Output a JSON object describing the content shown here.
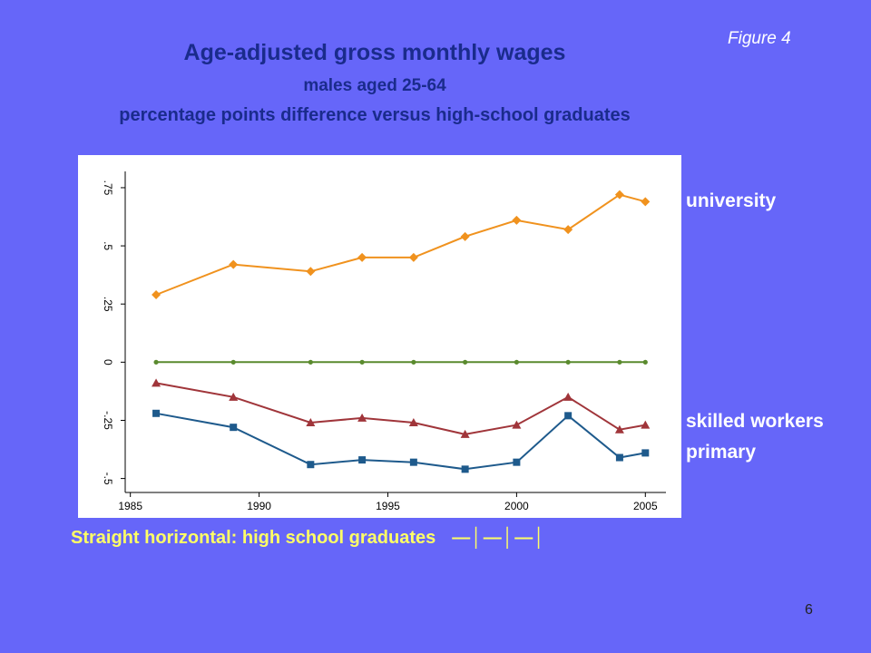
{
  "figure_label": "Figure 4",
  "title": "Age-adjusted gross monthly wages",
  "subtitle": "males aged 25-64",
  "subtitle2": "percentage points difference versus high-school graduates",
  "legend": {
    "university": "university",
    "skilled": "skilled workers",
    "primary": "primary"
  },
  "bottom_note": {
    "text": "Straight horizontal:  high school graduates",
    "marker": "—│—│—│"
  },
  "page_number": "6",
  "colors": {
    "background": "#6666f9",
    "title": "#1a2b8c",
    "legend_text": "#ffffff",
    "note_text": "#ffff66",
    "university": "#f0921e",
    "high_school": "#5a8a2e",
    "skilled": "#a0353a",
    "primary": "#1e5a8c"
  },
  "chart_data": {
    "type": "line",
    "title": "",
    "xlabel": "",
    "ylabel": "",
    "xlim": [
      1984.8,
      2005.8
    ],
    "ylim": [
      -0.56,
      0.82
    ],
    "xticks": [
      1985,
      1990,
      1995,
      2000,
      2005
    ],
    "xtick_labels": [
      "1985",
      "1990",
      "1995",
      "2000",
      "2005"
    ],
    "yticks": [
      -0.5,
      -0.25,
      0,
      0.25,
      0.5,
      0.75
    ],
    "ytick_labels": [
      "-.5",
      "-.25",
      "0",
      ".25",
      ".5",
      ".75"
    ],
    "grid": false,
    "series": [
      {
        "key": "university",
        "marker": "diamond",
        "x": [
          1986,
          1989,
          1992,
          1994,
          1996,
          1998,
          2000,
          2002,
          2004,
          2005
        ],
        "y": [
          0.29,
          0.42,
          0.39,
          0.45,
          0.45,
          0.54,
          0.61,
          0.57,
          0.72,
          0.69
        ]
      },
      {
        "key": "high_school",
        "marker": "plus",
        "x": [
          1986,
          1989,
          1992,
          1994,
          1996,
          1998,
          2000,
          2002,
          2004,
          2005
        ],
        "y": [
          0,
          0,
          0,
          0,
          0,
          0,
          0,
          0,
          0,
          0
        ]
      },
      {
        "key": "skilled",
        "marker": "triangle",
        "x": [
          1986,
          1989,
          1992,
          1994,
          1996,
          1998,
          2000,
          2002,
          2004,
          2005
        ],
        "y": [
          -0.09,
          -0.15,
          -0.26,
          -0.24,
          -0.26,
          -0.31,
          -0.27,
          -0.15,
          -0.29,
          -0.27
        ]
      },
      {
        "key": "primary",
        "marker": "square",
        "x": [
          1986,
          1989,
          1992,
          1994,
          1996,
          1998,
          2000,
          2002,
          2004,
          2005
        ],
        "y": [
          -0.22,
          -0.28,
          -0.44,
          -0.42,
          -0.43,
          -0.46,
          -0.43,
          -0.23,
          -0.41,
          -0.39
        ]
      }
    ]
  }
}
